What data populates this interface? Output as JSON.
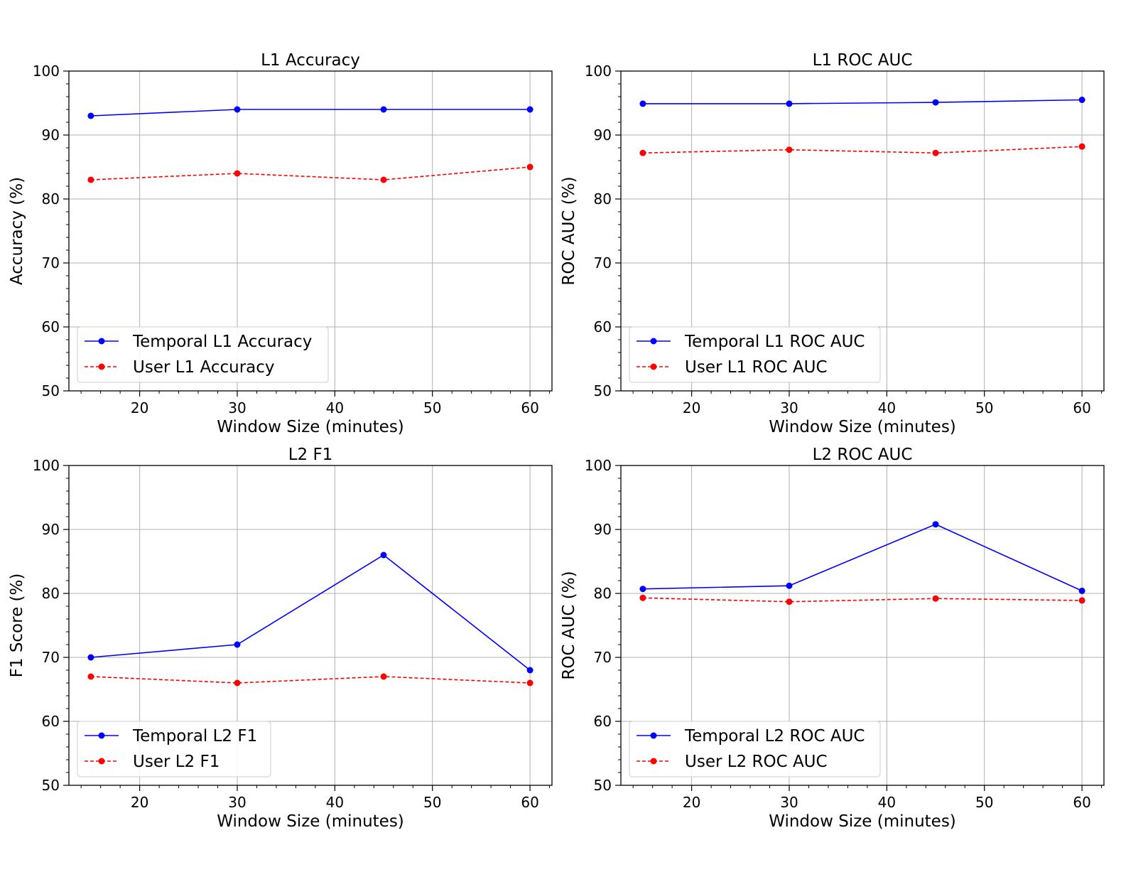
{
  "chart_data": [
    {
      "type": "line",
      "title": "L1 Accuracy",
      "xlabel": "Window Size (minutes)",
      "ylabel": "Accuracy (%)",
      "xlim": [
        12.75,
        62.25
      ],
      "ylim": [
        50,
        100
      ],
      "xticks": [
        20,
        30,
        40,
        50,
        60
      ],
      "yticks": [
        50,
        60,
        70,
        80,
        90,
        100
      ],
      "grid": true,
      "legend_position": "lower-left",
      "series": [
        {
          "name": "Temporal L1 Accuracy",
          "color": "#0000ff",
          "style": "solid",
          "x": [
            15,
            30,
            45,
            60
          ],
          "y": [
            93,
            94,
            94,
            94
          ]
        },
        {
          "name": "User L1 Accuracy",
          "color": "#ff0000",
          "style": "dashed",
          "x": [
            15,
            30,
            45,
            60
          ],
          "y": [
            83,
            84,
            83,
            85
          ]
        }
      ]
    },
    {
      "type": "line",
      "title": "L1 ROC AUC",
      "xlabel": "Window Size (minutes)",
      "ylabel": "ROC AUC (%)",
      "xlim": [
        12.75,
        62.25
      ],
      "ylim": [
        50,
        100
      ],
      "xticks": [
        20,
        30,
        40,
        50,
        60
      ],
      "yticks": [
        50,
        60,
        70,
        80,
        90,
        100
      ],
      "grid": true,
      "legend_position": "lower-left",
      "series": [
        {
          "name": "Temporal L1 ROC AUC",
          "color": "#0000ff",
          "style": "solid",
          "x": [
            15,
            30,
            45,
            60
          ],
          "y": [
            94.9,
            94.9,
            95.1,
            95.5
          ]
        },
        {
          "name": "User L1 ROC AUC",
          "color": "#ff0000",
          "style": "dashed",
          "x": [
            15,
            30,
            45,
            60
          ],
          "y": [
            87.2,
            87.7,
            87.2,
            88.2
          ]
        }
      ]
    },
    {
      "type": "line",
      "title": "L2 F1",
      "xlabel": "Window Size (minutes)",
      "ylabel": "F1 Score (%)",
      "xlim": [
        12.75,
        62.25
      ],
      "ylim": [
        50,
        100
      ],
      "xticks": [
        20,
        30,
        40,
        50,
        60
      ],
      "yticks": [
        50,
        60,
        70,
        80,
        90,
        100
      ],
      "grid": true,
      "legend_position": "lower-left",
      "series": [
        {
          "name": "Temporal L2 F1",
          "color": "#0000ff",
          "style": "solid",
          "x": [
            15,
            30,
            45,
            60
          ],
          "y": [
            70,
            72,
            86,
            68
          ]
        },
        {
          "name": "User L2 F1",
          "color": "#ff0000",
          "style": "dashed",
          "x": [
            15,
            30,
            45,
            60
          ],
          "y": [
            67,
            66,
            67,
            66
          ]
        }
      ]
    },
    {
      "type": "line",
      "title": "L2 ROC AUC",
      "xlabel": "Window Size (minutes)",
      "ylabel": "ROC AUC (%)",
      "xlim": [
        12.75,
        62.25
      ],
      "ylim": [
        50,
        100
      ],
      "xticks": [
        20,
        30,
        40,
        50,
        60
      ],
      "yticks": [
        50,
        60,
        70,
        80,
        90,
        100
      ],
      "grid": true,
      "legend_position": "lower-left",
      "series": [
        {
          "name": "Temporal L2 ROC AUC",
          "color": "#0000ff",
          "style": "solid",
          "x": [
            15,
            30,
            45,
            60
          ],
          "y": [
            80.7,
            81.2,
            90.8,
            80.4
          ]
        },
        {
          "name": "User L2 ROC AUC",
          "color": "#ff0000",
          "style": "dashed",
          "x": [
            15,
            30,
            45,
            60
          ],
          "y": [
            79.3,
            78.7,
            79.2,
            78.9
          ]
        }
      ]
    }
  ]
}
